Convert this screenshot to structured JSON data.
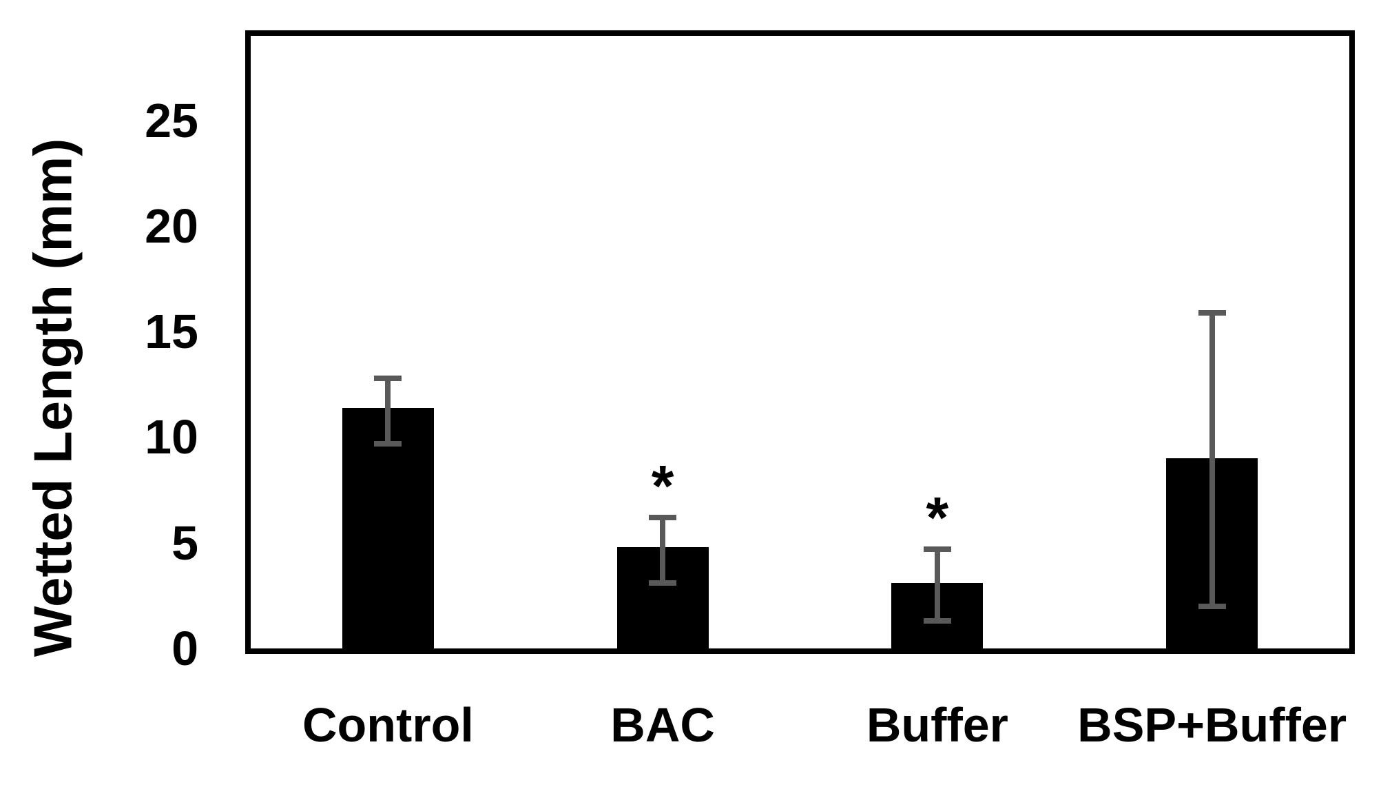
{
  "chart_data": {
    "type": "bar",
    "title": "",
    "xlabel": "",
    "ylabel": "Wetted Length (mm)",
    "categories": [
      "Control",
      "BAC",
      "Buffer",
      "BSP+Buffer"
    ],
    "values": [
      11.4,
      4.8,
      3.1,
      9.0
    ],
    "error_bars": {
      "upper": [
        12.8,
        6.2,
        4.7,
        15.9
      ],
      "lower": [
        9.7,
        3.1,
        1.3,
        2.0
      ]
    },
    "significance_markers": [
      "",
      "*",
      "*",
      ""
    ],
    "yticks": [
      0,
      5,
      10,
      15,
      20,
      25
    ],
    "ylim": [
      0,
      29
    ],
    "grid": false,
    "legend": false,
    "bar_color": "#000000",
    "error_bar_color": "#595959",
    "axis_color": "#000000",
    "background_color": "#ffffff"
  }
}
